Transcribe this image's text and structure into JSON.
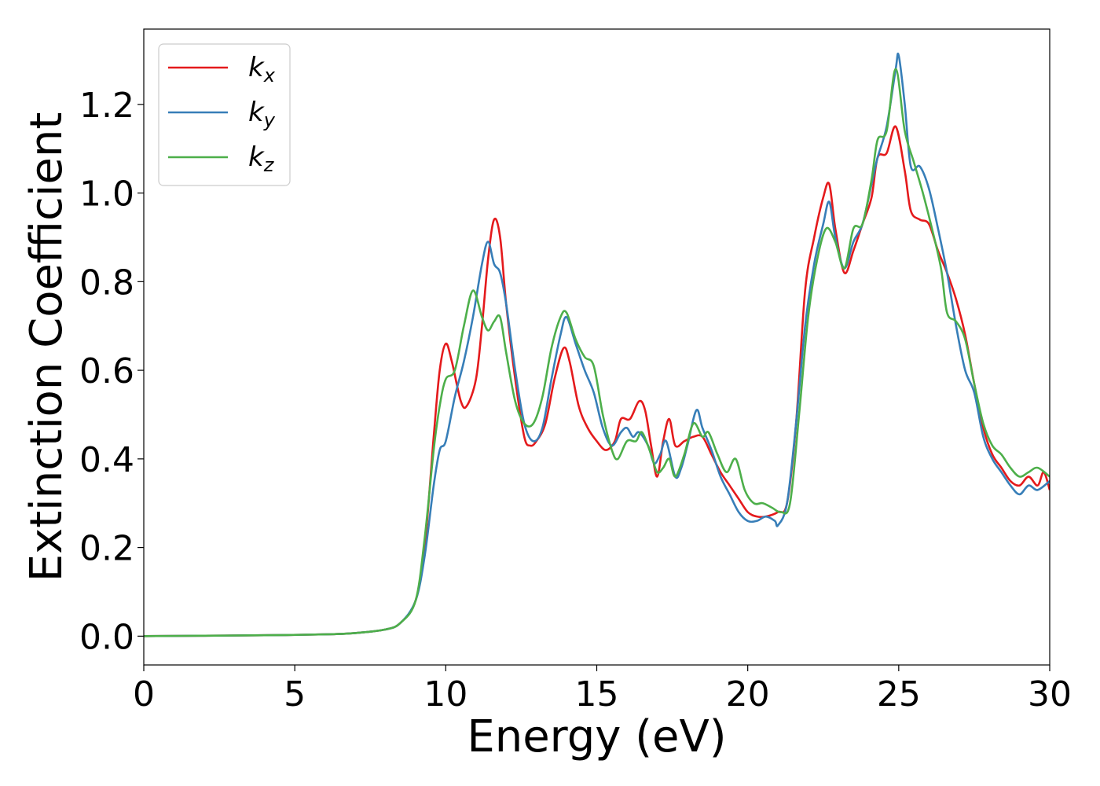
{
  "chart_data": {
    "type": "line",
    "xlabel": "Energy (eV)",
    "ylabel": "Extinction Coefficient",
    "xlim": [
      0,
      30
    ],
    "ylim": [
      -0.065,
      1.37
    ],
    "xticks": [
      0,
      5,
      10,
      15,
      20,
      25,
      30
    ],
    "xtick_labels": [
      "0",
      "5",
      "10",
      "15",
      "20",
      "25",
      "30"
    ],
    "yticks": [
      0.0,
      0.2,
      0.4,
      0.6,
      0.8,
      1.0,
      1.2
    ],
    "ytick_labels": [
      "0.0",
      "0.2",
      "0.4",
      "0.6",
      "0.8",
      "1.0",
      "1.2"
    ],
    "grid": false,
    "legend": "top-left",
    "series": [
      {
        "name": "k",
        "subscript": "x",
        "color": "#e41a1c",
        "points": [
          [
            0,
            0.0
          ],
          [
            2,
            0.001
          ],
          [
            4,
            0.002
          ],
          [
            6,
            0.004
          ],
          [
            7,
            0.007
          ],
          [
            8,
            0.015
          ],
          [
            8.5,
            0.03
          ],
          [
            9,
            0.08
          ],
          [
            9.3,
            0.2
          ],
          [
            9.6,
            0.45
          ],
          [
            9.8,
            0.6
          ],
          [
            10,
            0.66
          ],
          [
            10.2,
            0.62
          ],
          [
            10.5,
            0.53
          ],
          [
            10.7,
            0.52
          ],
          [
            11,
            0.58
          ],
          [
            11.2,
            0.7
          ],
          [
            11.4,
            0.85
          ],
          [
            11.6,
            0.94
          ],
          [
            11.8,
            0.9
          ],
          [
            12,
            0.75
          ],
          [
            12.3,
            0.58
          ],
          [
            12.6,
            0.45
          ],
          [
            12.8,
            0.43
          ],
          [
            13,
            0.44
          ],
          [
            13.3,
            0.48
          ],
          [
            13.6,
            0.58
          ],
          [
            13.9,
            0.65
          ],
          [
            14.1,
            0.62
          ],
          [
            14.4,
            0.52
          ],
          [
            14.7,
            0.47
          ],
          [
            15,
            0.44
          ],
          [
            15.3,
            0.42
          ],
          [
            15.6,
            0.44
          ],
          [
            15.8,
            0.49
          ],
          [
            16.1,
            0.49
          ],
          [
            16.4,
            0.53
          ],
          [
            16.6,
            0.51
          ],
          [
            16.8,
            0.43
          ],
          [
            17,
            0.36
          ],
          [
            17.2,
            0.44
          ],
          [
            17.4,
            0.49
          ],
          [
            17.6,
            0.43
          ],
          [
            17.9,
            0.44
          ],
          [
            18.2,
            0.45
          ],
          [
            18.5,
            0.45
          ],
          [
            18.8,
            0.41
          ],
          [
            19.1,
            0.37
          ],
          [
            19.4,
            0.34
          ],
          [
            19.7,
            0.31
          ],
          [
            20,
            0.28
          ],
          [
            20.3,
            0.27
          ],
          [
            20.6,
            0.27
          ],
          [
            21,
            0.28
          ],
          [
            21.3,
            0.3
          ],
          [
            21.6,
            0.48
          ],
          [
            21.9,
            0.78
          ],
          [
            22.2,
            0.9
          ],
          [
            22.5,
            0.99
          ],
          [
            22.7,
            1.02
          ],
          [
            22.9,
            0.92
          ],
          [
            23.2,
            0.82
          ],
          [
            23.5,
            0.87
          ],
          [
            23.8,
            0.93
          ],
          [
            24.1,
            0.99
          ],
          [
            24.3,
            1.08
          ],
          [
            24.6,
            1.09
          ],
          [
            24.9,
            1.15
          ],
          [
            25.2,
            1.05
          ],
          [
            25.4,
            0.96
          ],
          [
            25.7,
            0.94
          ],
          [
            26,
            0.93
          ],
          [
            26.3,
            0.87
          ],
          [
            26.6,
            0.82
          ],
          [
            26.9,
            0.76
          ],
          [
            27.2,
            0.68
          ],
          [
            27.5,
            0.57
          ],
          [
            27.8,
            0.47
          ],
          [
            28.1,
            0.41
          ],
          [
            28.4,
            0.38
          ],
          [
            28.7,
            0.35
          ],
          [
            29,
            0.34
          ],
          [
            29.3,
            0.36
          ],
          [
            29.6,
            0.34
          ],
          [
            29.8,
            0.37
          ],
          [
            30,
            0.33
          ]
        ]
      },
      {
        "name": "k",
        "subscript": "y",
        "color": "#377eb8",
        "points": [
          [
            0,
            0.0
          ],
          [
            2,
            0.001
          ],
          [
            4,
            0.002
          ],
          [
            6,
            0.004
          ],
          [
            7,
            0.007
          ],
          [
            8,
            0.015
          ],
          [
            8.5,
            0.03
          ],
          [
            9,
            0.08
          ],
          [
            9.3,
            0.18
          ],
          [
            9.6,
            0.34
          ],
          [
            9.8,
            0.42
          ],
          [
            10,
            0.44
          ],
          [
            10.3,
            0.54
          ],
          [
            10.6,
            0.62
          ],
          [
            10.9,
            0.72
          ],
          [
            11.2,
            0.84
          ],
          [
            11.4,
            0.89
          ],
          [
            11.6,
            0.84
          ],
          [
            11.8,
            0.82
          ],
          [
            12,
            0.75
          ],
          [
            12.3,
            0.6
          ],
          [
            12.6,
            0.48
          ],
          [
            12.9,
            0.44
          ],
          [
            13.2,
            0.47
          ],
          [
            13.5,
            0.58
          ],
          [
            13.8,
            0.68
          ],
          [
            14,
            0.72
          ],
          [
            14.3,
            0.66
          ],
          [
            14.6,
            0.6
          ],
          [
            14.9,
            0.55
          ],
          [
            15.2,
            0.47
          ],
          [
            15.5,
            0.43
          ],
          [
            15.8,
            0.46
          ],
          [
            16,
            0.47
          ],
          [
            16.2,
            0.45
          ],
          [
            16.4,
            0.46
          ],
          [
            16.7,
            0.43
          ],
          [
            16.9,
            0.39
          ],
          [
            17.1,
            0.41
          ],
          [
            17.3,
            0.44
          ],
          [
            17.6,
            0.36
          ],
          [
            17.8,
            0.38
          ],
          [
            18,
            0.43
          ],
          [
            18.3,
            0.51
          ],
          [
            18.5,
            0.47
          ],
          [
            18.8,
            0.42
          ],
          [
            19.1,
            0.36
          ],
          [
            19.4,
            0.32
          ],
          [
            19.7,
            0.28
          ],
          [
            20,
            0.26
          ],
          [
            20.3,
            0.26
          ],
          [
            20.6,
            0.27
          ],
          [
            20.9,
            0.26
          ],
          [
            21,
            0.25
          ],
          [
            21.3,
            0.3
          ],
          [
            21.6,
            0.48
          ],
          [
            21.9,
            0.7
          ],
          [
            22.2,
            0.84
          ],
          [
            22.5,
            0.93
          ],
          [
            22.7,
            0.98
          ],
          [
            22.9,
            0.9
          ],
          [
            23.2,
            0.83
          ],
          [
            23.5,
            0.89
          ],
          [
            23.8,
            0.93
          ],
          [
            24.1,
            1.02
          ],
          [
            24.3,
            1.08
          ],
          [
            24.6,
            1.15
          ],
          [
            24.9,
            1.28
          ],
          [
            25,
            1.31
          ],
          [
            25.2,
            1.2
          ],
          [
            25.4,
            1.06
          ],
          [
            25.7,
            1.06
          ],
          [
            26,
            1.01
          ],
          [
            26.3,
            0.92
          ],
          [
            26.6,
            0.82
          ],
          [
            26.9,
            0.7
          ],
          [
            27.2,
            0.6
          ],
          [
            27.5,
            0.55
          ],
          [
            27.8,
            0.45
          ],
          [
            28.1,
            0.4
          ],
          [
            28.4,
            0.37
          ],
          [
            28.7,
            0.34
          ],
          [
            29,
            0.32
          ],
          [
            29.3,
            0.34
          ],
          [
            29.6,
            0.33
          ],
          [
            30,
            0.35
          ]
        ]
      },
      {
        "name": "k",
        "subscript": "z",
        "color": "#4daf4a",
        "points": [
          [
            0,
            0.0
          ],
          [
            2,
            0.001
          ],
          [
            4,
            0.002
          ],
          [
            6,
            0.004
          ],
          [
            7,
            0.007
          ],
          [
            8,
            0.015
          ],
          [
            8.5,
            0.03
          ],
          [
            9,
            0.08
          ],
          [
            9.3,
            0.22
          ],
          [
            9.6,
            0.42
          ],
          [
            9.8,
            0.52
          ],
          [
            10,
            0.58
          ],
          [
            10.3,
            0.6
          ],
          [
            10.6,
            0.7
          ],
          [
            10.9,
            0.78
          ],
          [
            11.2,
            0.72
          ],
          [
            11.4,
            0.69
          ],
          [
            11.6,
            0.71
          ],
          [
            11.8,
            0.72
          ],
          [
            12,
            0.64
          ],
          [
            12.3,
            0.53
          ],
          [
            12.6,
            0.48
          ],
          [
            12.9,
            0.48
          ],
          [
            13.2,
            0.54
          ],
          [
            13.5,
            0.65
          ],
          [
            13.8,
            0.72
          ],
          [
            14,
            0.73
          ],
          [
            14.3,
            0.67
          ],
          [
            14.6,
            0.63
          ],
          [
            14.9,
            0.61
          ],
          [
            15.2,
            0.5
          ],
          [
            15.5,
            0.42
          ],
          [
            15.7,
            0.4
          ],
          [
            16,
            0.44
          ],
          [
            16.3,
            0.44
          ],
          [
            16.5,
            0.46
          ],
          [
            16.8,
            0.41
          ],
          [
            17,
            0.37
          ],
          [
            17.2,
            0.38
          ],
          [
            17.4,
            0.4
          ],
          [
            17.6,
            0.36
          ],
          [
            17.9,
            0.41
          ],
          [
            18.2,
            0.48
          ],
          [
            18.5,
            0.45
          ],
          [
            18.7,
            0.46
          ],
          [
            19,
            0.41
          ],
          [
            19.3,
            0.37
          ],
          [
            19.6,
            0.4
          ],
          [
            19.9,
            0.33
          ],
          [
            20.2,
            0.3
          ],
          [
            20.5,
            0.3
          ],
          [
            20.8,
            0.29
          ],
          [
            21.1,
            0.28
          ],
          [
            21.4,
            0.3
          ],
          [
            21.7,
            0.5
          ],
          [
            22,
            0.72
          ],
          [
            22.3,
            0.85
          ],
          [
            22.6,
            0.92
          ],
          [
            22.9,
            0.89
          ],
          [
            23.2,
            0.83
          ],
          [
            23.5,
            0.92
          ],
          [
            23.8,
            0.93
          ],
          [
            24.1,
            1.03
          ],
          [
            24.3,
            1.12
          ],
          [
            24.6,
            1.14
          ],
          [
            24.9,
            1.28
          ],
          [
            25.2,
            1.14
          ],
          [
            25.5,
            1.07
          ],
          [
            25.8,
            1.0
          ],
          [
            26.1,
            0.92
          ],
          [
            26.4,
            0.83
          ],
          [
            26.6,
            0.73
          ],
          [
            26.9,
            0.71
          ],
          [
            27.2,
            0.67
          ],
          [
            27.5,
            0.57
          ],
          [
            27.8,
            0.48
          ],
          [
            28.1,
            0.43
          ],
          [
            28.4,
            0.41
          ],
          [
            28.7,
            0.38
          ],
          [
            29,
            0.36
          ],
          [
            29.3,
            0.37
          ],
          [
            29.6,
            0.38
          ],
          [
            30,
            0.36
          ]
        ]
      }
    ]
  }
}
